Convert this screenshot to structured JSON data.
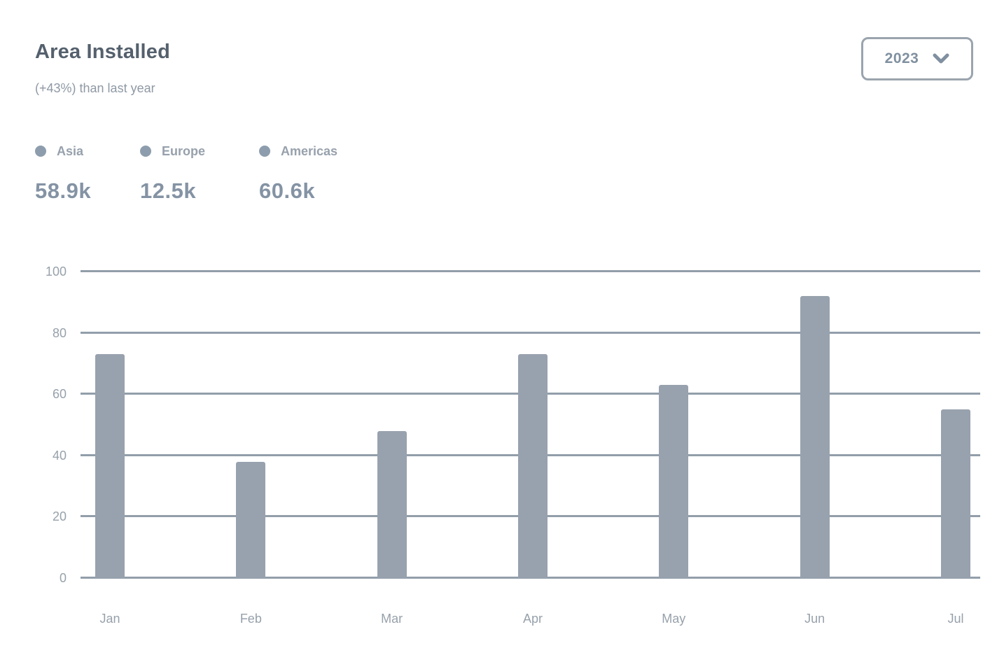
{
  "card": {
    "title": "Area Installed",
    "subtitle": "(+43%) than last year",
    "year_selector": {
      "value": "2023",
      "icon": "chevron-down-icon"
    }
  },
  "legend": {
    "items": [
      {
        "label": "Asia",
        "value": "58.9k",
        "dot_color": "#8d9dad"
      },
      {
        "label": "Europe",
        "value": "12.5k",
        "dot_color": "#8d9dad"
      },
      {
        "label": "Americas",
        "value": "60.6k",
        "dot_color": "#8d9dad"
      }
    ]
  },
  "chart_data": {
    "type": "bar",
    "title": "Area Installed",
    "categories": [
      "Jan",
      "Feb",
      "Mar",
      "Apr",
      "May",
      "Jun",
      "Jul"
    ],
    "values": [
      73,
      38,
      48,
      73,
      63,
      92,
      55
    ],
    "xlabel": "",
    "ylabel": "",
    "ylim": [
      0,
      100
    ],
    "yticks": [
      0,
      20,
      40,
      60,
      80,
      100
    ],
    "grid": "horizontal",
    "legend_position": "top-left above plot",
    "bar_color": "#98a2ae",
    "grid_color": "#929eaa"
  },
  "colors": {
    "background": "#ffffff",
    "title_text": "#54606d",
    "subtitle_text": "#8f99a4",
    "legend_label_text": "#97a1ac",
    "legend_value_text": "#8493a4",
    "axis_label_text": "#97a1ab",
    "button_border": "#9aa4ae",
    "button_text": "#8090a0"
  }
}
